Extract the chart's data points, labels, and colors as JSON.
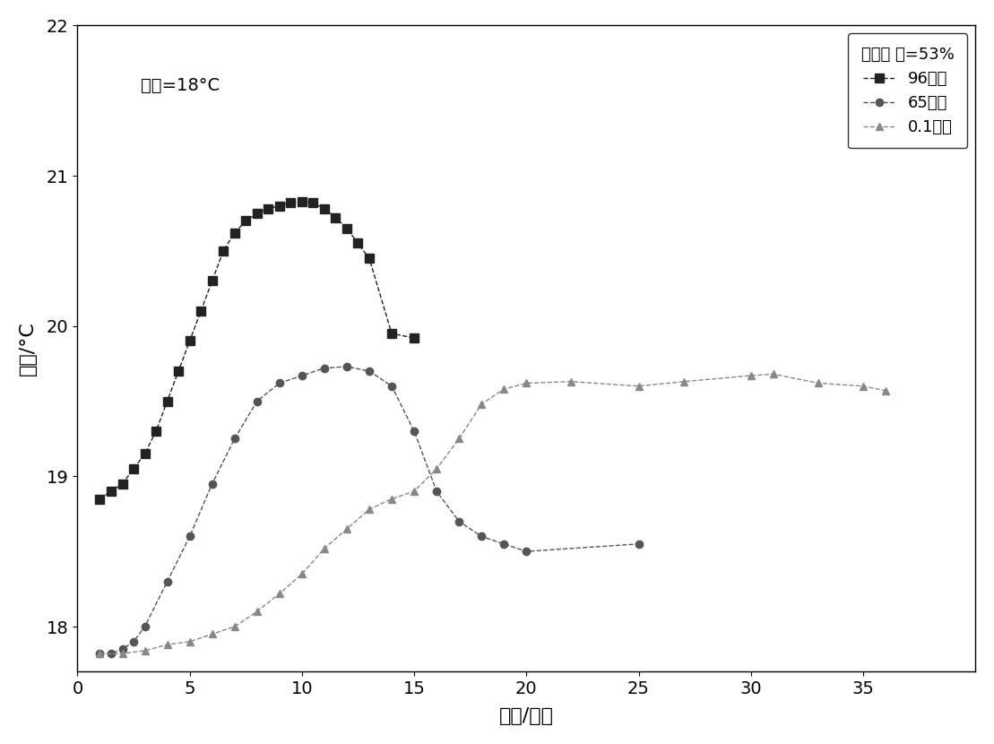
{
  "title_annotation": "温度=18°C",
  "legend_title": "体积分 数=53%",
  "xlabel": "时间/分钟",
  "ylabel": "温度/°C",
  "xlim": [
    0,
    40
  ],
  "ylim": [
    17.7,
    22.0
  ],
  "xticks": [
    0,
    5,
    10,
    15,
    20,
    25,
    30,
    35
  ],
  "yticks": [
    18,
    19,
    20,
    21,
    22
  ],
  "series": [
    {
      "label": "96兆帕",
      "marker": "s",
      "markersize": 7,
      "color": "#222222",
      "linestyle": "--",
      "x": [
        1,
        1.5,
        2,
        2.5,
        3,
        3.5,
        4,
        4.5,
        5,
        5.5,
        6,
        6.5,
        7,
        7.5,
        8,
        8.5,
        9,
        9.5,
        10,
        10.5,
        11,
        11.5,
        12,
        12.5,
        13,
        14,
        15
      ],
      "y": [
        18.85,
        18.9,
        18.95,
        19.05,
        19.15,
        19.3,
        19.5,
        19.7,
        19.9,
        20.1,
        20.3,
        20.5,
        20.62,
        20.7,
        20.75,
        20.78,
        20.8,
        20.82,
        20.83,
        20.82,
        20.78,
        20.72,
        20.65,
        20.55,
        20.45,
        19.95,
        19.92
      ]
    },
    {
      "label": "65兆帕",
      "marker": "o",
      "markersize": 6,
      "color": "#555555",
      "linestyle": "--",
      "x": [
        1,
        1.5,
        2,
        2.5,
        3,
        4,
        5,
        6,
        7,
        8,
        9,
        10,
        11,
        12,
        13,
        14,
        15,
        16,
        17,
        18,
        19,
        20,
        25
      ],
      "y": [
        17.82,
        17.82,
        17.85,
        17.9,
        18.0,
        18.3,
        18.6,
        18.95,
        19.25,
        19.5,
        19.62,
        19.67,
        19.72,
        19.73,
        19.7,
        19.6,
        19.3,
        18.9,
        18.7,
        18.6,
        18.55,
        18.5,
        18.55
      ]
    },
    {
      "label": "0.1兆帕",
      "marker": "^",
      "markersize": 6,
      "color": "#888888",
      "linestyle": "--",
      "x": [
        1,
        2,
        3,
        4,
        5,
        6,
        7,
        8,
        9,
        10,
        11,
        12,
        13,
        14,
        15,
        16,
        17,
        18,
        19,
        20,
        22,
        25,
        27,
        30,
        31,
        33,
        35,
        36
      ],
      "y": [
        17.82,
        17.82,
        17.84,
        17.88,
        17.9,
        17.95,
        18.0,
        18.1,
        18.22,
        18.35,
        18.52,
        18.65,
        18.78,
        18.85,
        18.9,
        19.05,
        19.25,
        19.48,
        19.58,
        19.62,
        19.63,
        19.6,
        19.63,
        19.67,
        19.68,
        19.62,
        19.6,
        19.57
      ]
    }
  ],
  "background_color": "#ffffff",
  "plot_bg_color": "#ffffff",
  "annotation_fontsize": 14,
  "legend_fontsize": 13,
  "tick_fontsize": 14,
  "label_fontsize": 16
}
